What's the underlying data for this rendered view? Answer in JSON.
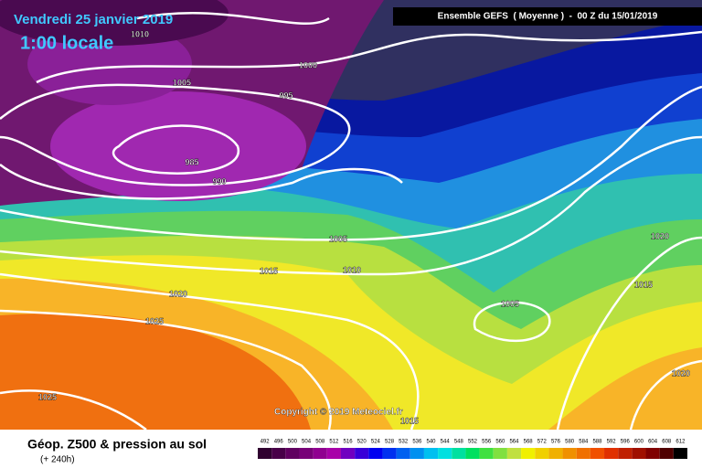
{
  "header": {
    "date": "Vendredi 25 janvier 2019",
    "time": "1:00 locale",
    "info": "Ensemble GEFS  ( Moyenne )  -  00 Z du 15/01/2019"
  },
  "isobars": [
    1010,
    1000,
    1005,
    995,
    985,
    990,
    1005,
    1015,
    1010,
    1020,
    1025,
    1005,
    1020,
    1015,
    1020,
    1025,
    1015
  ],
  "copyright": "Copyright © 2019 Meteociel.fr",
  "footer": {
    "title": "Géop. Z500 & pression au sol",
    "range": "(+ 240h)"
  },
  "scale": {
    "values": [
      492,
      496,
      500,
      504,
      508,
      512,
      516,
      520,
      524,
      528,
      532,
      536,
      540,
      544,
      548,
      552,
      556,
      560,
      564,
      568,
      572,
      576,
      580,
      584,
      588,
      592,
      596,
      600,
      604,
      608,
      612
    ],
    "colors": [
      "#300030",
      "#480048",
      "#600060",
      "#780078",
      "#900090",
      "#a800a8",
      "#7000c0",
      "#3800d8",
      "#0000f0",
      "#0030f0",
      "#0060f0",
      "#0090f0",
      "#00c0f0",
      "#00e0e0",
      "#00e0a0",
      "#00e060",
      "#40e040",
      "#80e040",
      "#c0e040",
      "#f0f000",
      "#f0d000",
      "#f0b000",
      "#f09000",
      "#f07000",
      "#f05000",
      "#e03000",
      "#c02000",
      "#a01000",
      "#800000",
      "#500000",
      "#000000"
    ]
  }
}
